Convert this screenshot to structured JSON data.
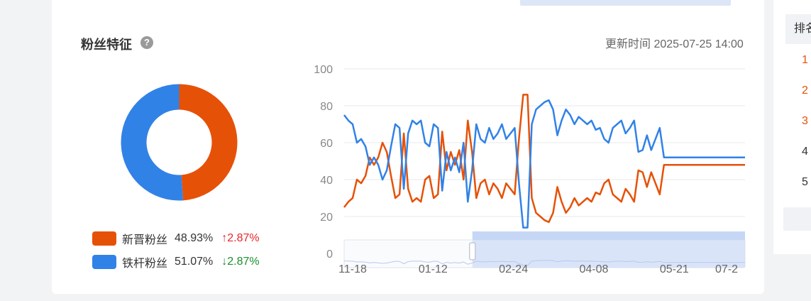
{
  "section": {
    "title": "粉丝特征",
    "help_icon_text": "?",
    "update_time": "更新时间 2025-07-25 14:00"
  },
  "colors": {
    "xinjin": "#e65108",
    "tiegan": "#3182e6",
    "up": "#e8262c",
    "down": "#1a8f2d"
  },
  "legend": [
    {
      "name": "新晋粉丝",
      "pct": "48.93%",
      "change": "↑2.87%",
      "direction": "up"
    },
    {
      "name": "铁杆粉丝",
      "pct": "51.07%",
      "change": "↓2.87%",
      "direction": "down"
    }
  ],
  "rank_panel": {
    "header": "排名",
    "numbers": [
      "1",
      "2",
      "3",
      "4",
      "5"
    ]
  },
  "chart_data": [
    {
      "type": "pie",
      "labels": [
        "新晋粉丝",
        "铁杆粉丝"
      ],
      "values": [
        48.93,
        51.07
      ]
    },
    {
      "type": "line",
      "ylim": [
        0,
        100
      ],
      "y_ticks": [
        "0",
        "20",
        "40",
        "60",
        "80",
        "100"
      ],
      "x_tick_labels": [
        "11-18",
        "01-12",
        "02-24",
        "04-08",
        "05-21",
        "07-2"
      ],
      "grid": true,
      "x_index": [
        0,
        6,
        12,
        18,
        24,
        30,
        36,
        42,
        48,
        54,
        60,
        66,
        72,
        78,
        84,
        90,
        96,
        102,
        108,
        114,
        120,
        126,
        132,
        138,
        144,
        150,
        156,
        162,
        168,
        174,
        180,
        186,
        192,
        198,
        204,
        210,
        216,
        222,
        228,
        234,
        240,
        246,
        252,
        258,
        264,
        270,
        276,
        282,
        288,
        294,
        300,
        306,
        312,
        318,
        324,
        330,
        336,
        342,
        348,
        354,
        360,
        366,
        372,
        378,
        384,
        390,
        396,
        402,
        408,
        414,
        420,
        426,
        432,
        438,
        444,
        450,
        456,
        462,
        468,
        474,
        480,
        486,
        492,
        498,
        504,
        510,
        516,
        522,
        528,
        534,
        540,
        546,
        552,
        558,
        564
      ],
      "series": [
        {
          "color": "#e65108",
          "values": [
            25,
            28,
            30,
            40,
            38,
            42,
            52,
            48,
            52,
            60,
            55,
            42,
            30,
            32,
            65,
            35,
            28,
            30,
            28,
            40,
            42,
            30,
            32,
            66,
            45,
            55,
            48,
            56,
            40,
            72,
            55,
            30,
            38,
            40,
            32,
            38,
            35,
            30,
            38,
            35,
            32,
            62,
            86,
            86,
            30,
            22,
            20,
            18,
            17,
            22,
            36,
            28,
            22,
            25,
            30,
            26,
            28,
            30,
            28,
            33,
            32,
            38,
            40,
            32,
            30,
            28,
            35,
            32,
            28,
            45,
            44,
            36,
            44,
            38,
            32,
            48,
            48,
            48,
            48,
            48,
            48,
            48,
            48,
            48,
            48,
            48,
            48,
            48,
            48,
            48,
            48,
            48,
            48,
            48,
            48
          ]
        },
        {
          "color": "#3182e6",
          "values": [
            75,
            72,
            70,
            60,
            62,
            58,
            48,
            52,
            48,
            40,
            45,
            58,
            70,
            68,
            35,
            65,
            72,
            70,
            72,
            60,
            58,
            70,
            68,
            34,
            55,
            45,
            52,
            44,
            60,
            28,
            45,
            70,
            62,
            60,
            68,
            62,
            65,
            70,
            62,
            65,
            68,
            38,
            14,
            14,
            70,
            78,
            80,
            82,
            83,
            78,
            64,
            72,
            78,
            75,
            70,
            74,
            72,
            70,
            72,
            67,
            68,
            62,
            60,
            68,
            70,
            72,
            65,
            68,
            72,
            55,
            56,
            64,
            56,
            62,
            68,
            52,
            52,
            52,
            52,
            52,
            52,
            52,
            52,
            52,
            52,
            52,
            52,
            52,
            52,
            52,
            52,
            52,
            52,
            52,
            52
          ]
        }
      ]
    }
  ]
}
